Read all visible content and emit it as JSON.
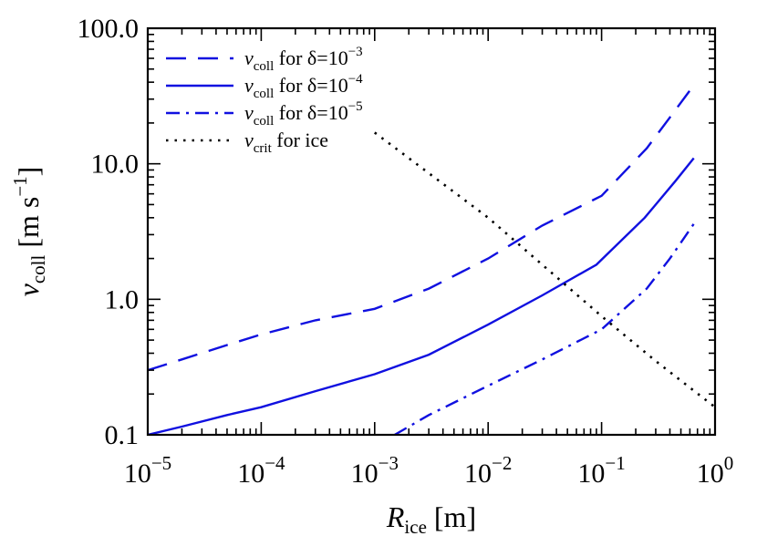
{
  "chart_data": {
    "type": "line",
    "x_scale": "log",
    "y_scale": "log",
    "xlim": [
      1e-05,
      1
    ],
    "ylim": [
      0.1,
      100
    ],
    "xlabel": {
      "main": "R",
      "sub": "ice",
      "unit": "[m]"
    },
    "ylabel": {
      "main": "v",
      "sub": "coll",
      "unit": "[m s",
      "unit_exp": "−1",
      "unit_close": "]"
    },
    "x_ticks": [
      {
        "value": 1e-05,
        "base": "10",
        "exp": "−5"
      },
      {
        "value": 0.0001,
        "base": "10",
        "exp": "−4"
      },
      {
        "value": 0.001,
        "base": "10",
        "exp": "−3"
      },
      {
        "value": 0.01,
        "base": "10",
        "exp": "−2"
      },
      {
        "value": 0.1,
        "base": "10",
        "exp": "−1"
      },
      {
        "value": 1,
        "base": "10",
        "exp": "0"
      }
    ],
    "y_ticks": [
      {
        "value": 0.1,
        "label": "0.1"
      },
      {
        "value": 1,
        "label": "1.0"
      },
      {
        "value": 10,
        "label": "10.0"
      },
      {
        "value": 100,
        "label": "100.0"
      }
    ],
    "legend_position": "top-left",
    "series": [
      {
        "legend": {
          "main": "v",
          "sub": "coll",
          "text": " for δ=10",
          "exp": "−3"
        },
        "color": "#1010e0",
        "dash": "dashed",
        "points": [
          [
            1e-05,
            0.3
          ],
          [
            2e-05,
            0.36
          ],
          [
            5e-05,
            0.46
          ],
          [
            0.0001,
            0.55
          ],
          [
            0.0003,
            0.7
          ],
          [
            0.001,
            0.85
          ],
          [
            0.003,
            1.2
          ],
          [
            0.01,
            2.0
          ],
          [
            0.03,
            3.5
          ],
          [
            0.1,
            5.8
          ],
          [
            0.25,
            13
          ],
          [
            0.4,
            22
          ],
          [
            0.65,
            38
          ]
        ]
      },
      {
        "legend": {
          "main": "v",
          "sub": "coll",
          "text": " for δ=10",
          "exp": "−4"
        },
        "color": "#1010e0",
        "dash": "solid",
        "points": [
          [
            1e-05,
            0.1
          ],
          [
            2e-05,
            0.115
          ],
          [
            5e-05,
            0.14
          ],
          [
            0.0001,
            0.16
          ],
          [
            0.0003,
            0.21
          ],
          [
            0.001,
            0.28
          ],
          [
            0.003,
            0.39
          ],
          [
            0.01,
            0.65
          ],
          [
            0.03,
            1.07
          ],
          [
            0.09,
            1.8
          ],
          [
            0.24,
            4.0
          ],
          [
            0.3,
            5.0
          ],
          [
            0.45,
            7.5
          ],
          [
            0.65,
            11
          ]
        ]
      },
      {
        "legend": {
          "main": "v",
          "sub": "coll",
          "text": " for δ=10",
          "exp": "−5"
        },
        "color": "#1010e0",
        "dash": "dashdot",
        "points": [
          [
            0.0015,
            0.1
          ],
          [
            0.003,
            0.14
          ],
          [
            0.01,
            0.23
          ],
          [
            0.03,
            0.36
          ],
          [
            0.1,
            0.6
          ],
          [
            0.25,
            1.2
          ],
          [
            0.4,
            2.0
          ],
          [
            0.65,
            3.6
          ]
        ]
      },
      {
        "legend": {
          "main": "v",
          "sub": "crit",
          "text": " for ice",
          "exp": ""
        },
        "color": "#000000",
        "dash": "dotted",
        "points": [
          [
            0.001,
            17
          ],
          [
            0.01,
            4.0
          ],
          [
            0.1,
            0.75
          ],
          [
            0.3,
            0.35
          ],
          [
            1,
            0.16
          ]
        ]
      }
    ]
  }
}
